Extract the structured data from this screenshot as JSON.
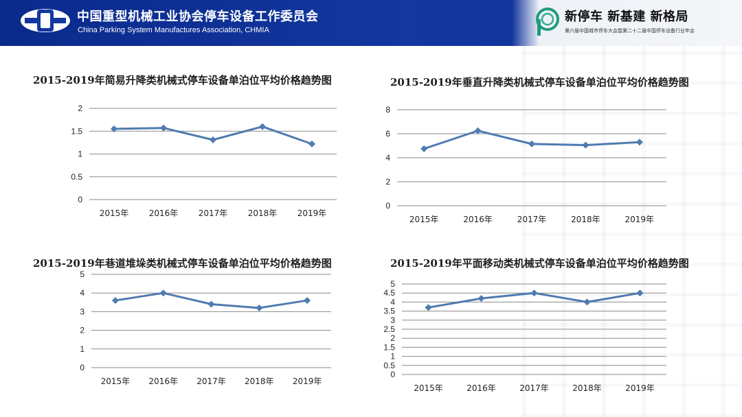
{
  "header": {
    "org_cn": "中国重型机械工业协会停车设备工作委员会",
    "org_en": "China Parking System Manufactures Association, CHMIA",
    "slogan": "新停车  新基建  新格局",
    "event": "第六届中国城市停车大会暨第二十二届中国停车设备行业年会",
    "colors": {
      "header_bg": "#13379f",
      "line": "#4f7bb0",
      "grid": "#8a8a8a"
    }
  },
  "chart_data": [
    {
      "type": "line",
      "title": "2015-2019年简易升降类机械式停车设备单泊位平均价格趋势图",
      "categories": [
        "2015年",
        "2016年",
        "2017年",
        "2018年",
        "2019年"
      ],
      "values": [
        1.55,
        1.57,
        1.31,
        1.6,
        1.22
      ],
      "ylim": [
        0,
        2
      ],
      "yticks": [
        "0",
        "0.5",
        "1",
        "1.5",
        "2"
      ],
      "grid": true
    },
    {
      "type": "line",
      "title": "2015-2019年垂直升降类机械式停车设备单泊位平均价格趋势图",
      "categories": [
        "2015年",
        "2016年",
        "2017年",
        "2018年",
        "2019年"
      ],
      "values": [
        4.75,
        6.25,
        5.15,
        5.05,
        5.3
      ],
      "ylim": [
        0,
        8
      ],
      "yticks": [
        "0",
        "2",
        "4",
        "6",
        "8"
      ],
      "grid": true
    },
    {
      "type": "line",
      "title": "2015-2019年巷道堆垛类机械式停车设备单泊位平均价格趋势图",
      "categories": [
        "2015年",
        "2016年",
        "2017年",
        "2018年",
        "2019年"
      ],
      "values": [
        3.6,
        4.0,
        3.4,
        3.2,
        3.6
      ],
      "ylim": [
        0,
        5
      ],
      "yticks": [
        "0",
        "1",
        "2",
        "3",
        "4",
        "5"
      ],
      "grid": true
    },
    {
      "type": "line",
      "title": "2015-2019年平面移动类机械式停车设备单泊位平均价格趋势图",
      "categories": [
        "2015年",
        "2016年",
        "2017年",
        "2018年",
        "2019年"
      ],
      "values": [
        3.7,
        4.2,
        4.5,
        4.0,
        4.5
      ],
      "ylim": [
        0,
        5
      ],
      "yticks": [
        "0",
        "0.5",
        "1",
        "1.5",
        "2",
        "2.5",
        "3",
        "3.5",
        "4",
        "4.5",
        "5"
      ],
      "grid": true
    }
  ]
}
